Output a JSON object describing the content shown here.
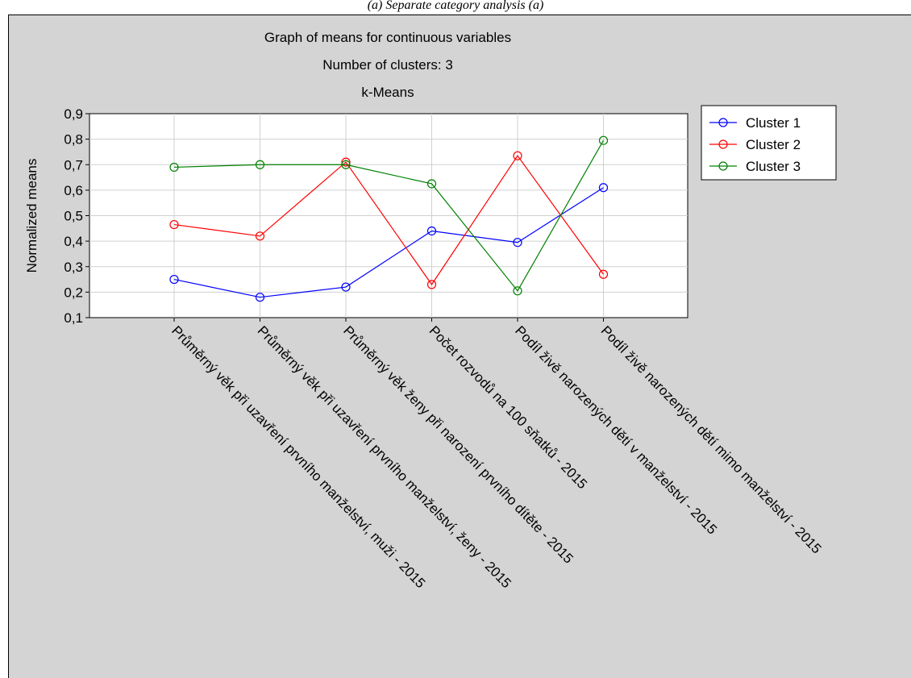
{
  "caption": "(a) Separate category analysis (a)",
  "chart_data": {
    "type": "line",
    "title": [
      "Graph of means for continuous variables",
      "Number of clusters: 3",
      "k-Means"
    ],
    "ylabel": "Normalized means",
    "xlabel": "",
    "ylim": [
      0.1,
      0.9
    ],
    "yticks": [
      "0,1",
      "0,2",
      "0,3",
      "0,4",
      "0,5",
      "0,6",
      "0,7",
      "0,8",
      "0,9"
    ],
    "grid": true,
    "legend_position": "right",
    "categories": [
      "Průměrný věk při uzavření prvního manželství, muži - 2015",
      "Průměrný věk při uzavření prvního manželství, ženy - 2015",
      "Průměrný věk ženy při narození prvního dítěte - 2015",
      "Počet rozvodů na 100 sňatků - 2015",
      "Podíl živě narozených dětí v manželství - 2015",
      "Podíl živě narozených dětí mimo manželství - 2015"
    ],
    "series": [
      {
        "name": "Cluster 1",
        "color": "#0000ff",
        "values": [
          0.25,
          0.18,
          0.22,
          0.44,
          0.395,
          0.61
        ]
      },
      {
        "name": "Cluster 2",
        "color": "#ff0000",
        "values": [
          0.465,
          0.42,
          0.71,
          0.23,
          0.735,
          0.27
        ]
      },
      {
        "name": "Cluster 3",
        "color": "#008000",
        "values": [
          0.69,
          0.7,
          0.7,
          0.625,
          0.205,
          0.795
        ]
      }
    ]
  }
}
